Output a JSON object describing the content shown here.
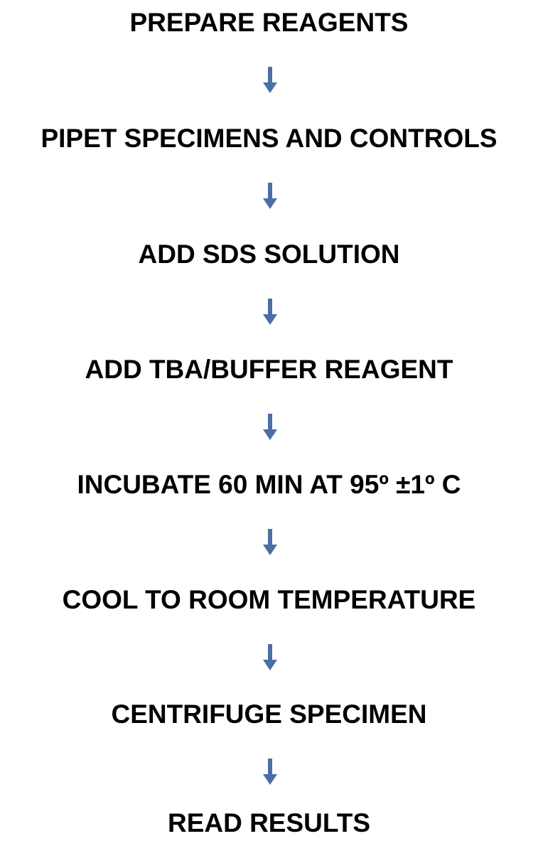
{
  "flowchart": {
    "arrow_color": "#4a6fa5",
    "steps": [
      {
        "label": "PREPARE REAGENTS"
      },
      {
        "label": "PIPET SPECIMENS AND CONTROLS"
      },
      {
        "label": "ADD SDS SOLUTION"
      },
      {
        "label": "ADD TBA/BUFFER REAGENT"
      },
      {
        "label": "INCUBATE 60 MIN AT 95º ±1º C"
      },
      {
        "label": "COOL TO ROOM TEMPERATURE"
      },
      {
        "label": "CENTRIFUGE SPECIMEN"
      },
      {
        "label": "READ RESULTS"
      }
    ],
    "arrow_icon": "down-arrow-icon"
  }
}
